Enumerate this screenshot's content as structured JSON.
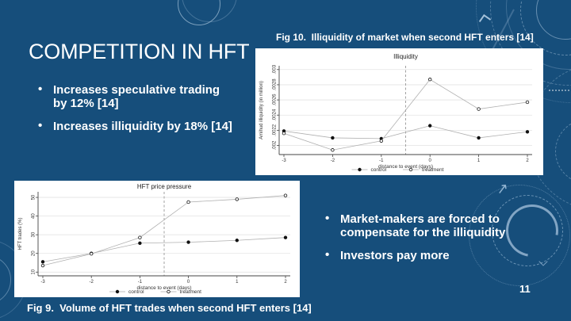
{
  "slide": {
    "title": "COMPETITION IN HFT",
    "page_number": "11",
    "background_color": "#164E7B",
    "text_color": "#FFFFFF",
    "decoration_color": "#A9CBE8"
  },
  "left_bullets": {
    "items": [
      "Increases speculative trading\nby 12% [14]",
      "Increases illiquidity by 18% [14]"
    ]
  },
  "right_bullets": {
    "items": [
      "Market-makers are forced to\ncompensate for the illiquidity",
      "Investors pay more"
    ]
  },
  "figures": {
    "fig10_caption": "Fig 10.  Illiquidity of market when second HFT enters [14]",
    "fig9_caption": "Fig 9.  Volume of HFT trades when second HFT enters [14]"
  },
  "chart_data": [
    {
      "id": "fig10",
      "type": "line",
      "title": "Illiquidity",
      "xlabel": "distance to event (days)",
      "ylabel": "Amihud illiquidity (in million)",
      "x": [
        -3,
        -2,
        -1,
        0,
        1,
        2
      ],
      "xlim": [
        -3.5,
        2.5
      ],
      "ylim": [
        0.00188,
        0.00305
      ],
      "yticks": [
        0.002,
        0.0022,
        0.0024,
        0.0026,
        0.0028,
        0.003
      ],
      "ytick_labels": [
        ".002",
        ".0022",
        ".0024",
        ".0026",
        ".0028",
        ".003"
      ],
      "event_line_x": -0.5,
      "grid": true,
      "legend_position": "bottom",
      "series": [
        {
          "name": "control",
          "marker": "solid",
          "values": [
            0.00219,
            0.0021,
            0.00209,
            0.00226,
            0.0021,
            0.00218
          ]
        },
        {
          "name": "treatment",
          "marker": "open",
          "values": [
            0.00216,
            0.00194,
            0.00206,
            0.00287,
            0.00248,
            0.00257
          ]
        }
      ]
    },
    {
      "id": "fig9",
      "type": "line",
      "title": "HFT price pressure",
      "xlabel": "distance to event (days)",
      "ylabel": "HFT trades (%)",
      "x": [
        -3,
        -2,
        -1,
        0,
        1,
        2
      ],
      "xlim": [
        -3.5,
        2.5
      ],
      "ylim": [
        8,
        53
      ],
      "yticks": [
        10,
        20,
        30,
        40,
        50
      ],
      "ytick_labels": [
        "10",
        "20",
        "30",
        "40",
        "50"
      ],
      "event_line_x": -0.5,
      "grid": true,
      "legend_position": "bottom",
      "series": [
        {
          "name": "control",
          "marker": "solid",
          "values": [
            15.5,
            20.0,
            25.5,
            26.0,
            27.0,
            28.5
          ]
        },
        {
          "name": "treatment",
          "marker": "open",
          "values": [
            13.5,
            19.8,
            28.5,
            47.5,
            49.0,
            51.0
          ]
        }
      ]
    }
  ]
}
